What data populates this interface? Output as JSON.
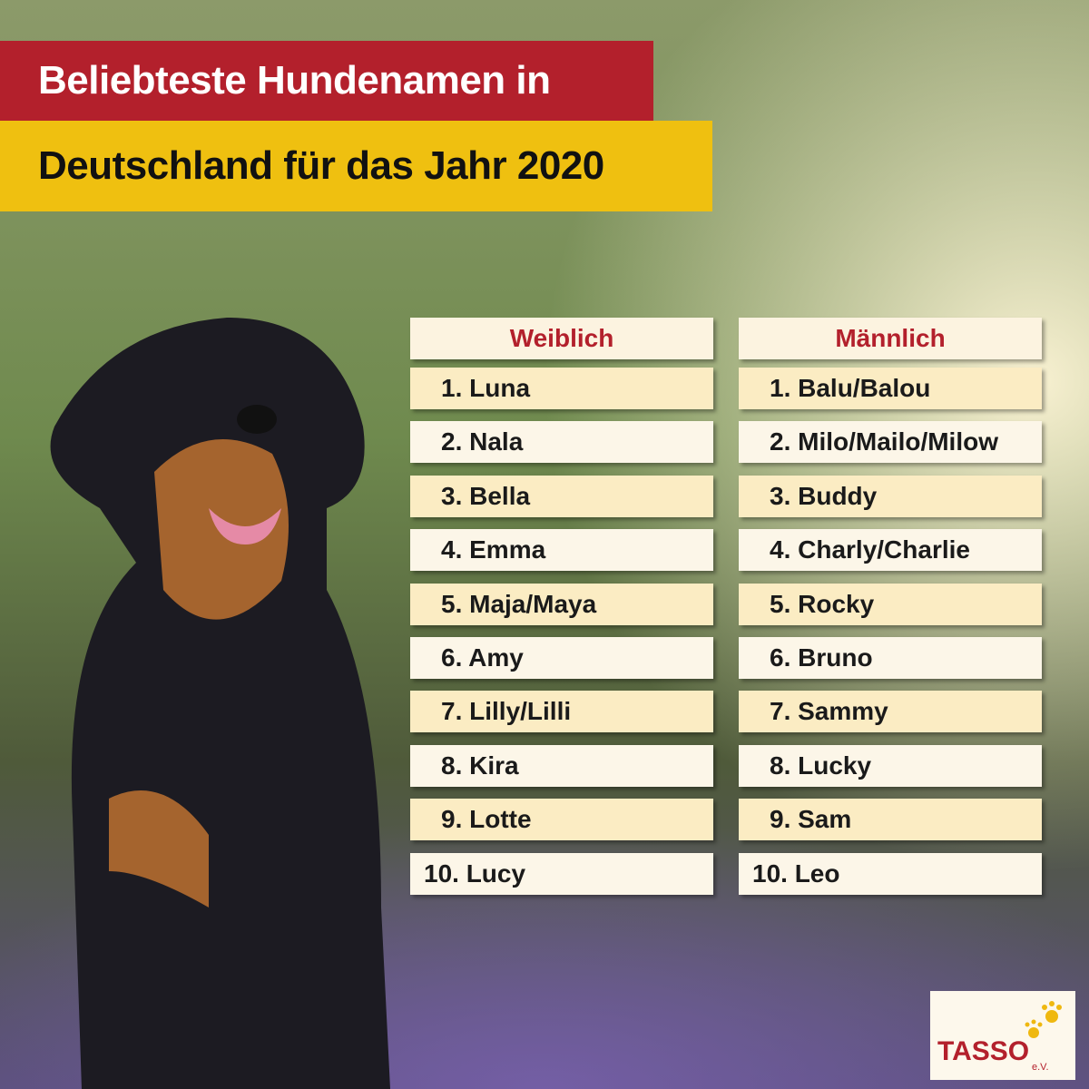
{
  "header": {
    "title_line1": "Beliebteste Hundenamen in",
    "title_line2": "Deutschland für das Jahr 2020"
  },
  "columns": [
    {
      "heading": "Weiblich",
      "names": [
        "1. Luna",
        "2. Nala",
        "3. Bella",
        "4. Emma",
        "5. Maja/Maya",
        "6. Amy",
        "7. Lilly/Lilli",
        "8. Kira",
        "9. Lotte",
        "10. Lucy"
      ]
    },
    {
      "heading": "Männlich",
      "names": [
        "1. Balu/Balou",
        "2. Milo/Mailo/Milow",
        "3. Buddy",
        "4. Charly/Charlie",
        "5. Rocky",
        "6. Bruno",
        "7. Sammy",
        "8. Lucky",
        "9. Sam",
        "10. Leo"
      ]
    }
  ],
  "logo": {
    "name": "TASSO",
    "suffix": "e.V."
  }
}
